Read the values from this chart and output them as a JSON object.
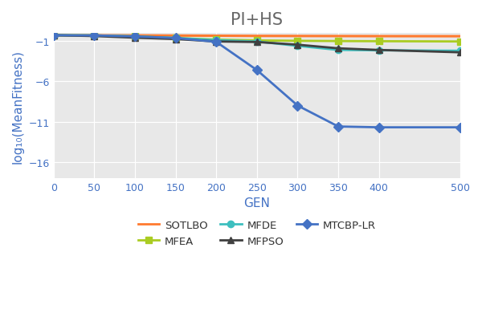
{
  "title": "PI+HS",
  "xlabel": "GEN",
  "ylabel": "log₁₀(MeanFitness)",
  "xlim": [
    0,
    500
  ],
  "ylim": [
    -18,
    0
  ],
  "yticks": [
    -16,
    -11,
    -6,
    -1
  ],
  "xticks": [
    0,
    50,
    100,
    150,
    200,
    250,
    300,
    350,
    400,
    500
  ],
  "bg_color": "#e8e8e8",
  "grid_color": "white",
  "series": [
    {
      "name": "SOTLBO",
      "color": "#FF7A2F",
      "marker": null,
      "markersize": 0,
      "linewidth": 2.2,
      "x": [
        0,
        50,
        100,
        150,
        200,
        250,
        300,
        350,
        400,
        500
      ],
      "y": [
        -0.28,
        -0.29,
        -0.3,
        -0.32,
        -0.34,
        -0.36,
        -0.37,
        -0.38,
        -0.39,
        -0.4
      ]
    },
    {
      "name": "MFEA",
      "color": "#AACC22",
      "marker": "s",
      "markersize": 6,
      "linewidth": 2.0,
      "x": [
        0,
        50,
        100,
        150,
        200,
        250,
        300,
        350,
        400,
        500
      ],
      "y": [
        -0.28,
        -0.3,
        -0.42,
        -0.62,
        -0.82,
        -0.92,
        -0.97,
        -1.0,
        -1.02,
        -1.05
      ]
    },
    {
      "name": "MFDE",
      "color": "#3DBFBF",
      "marker": "o",
      "markersize": 6,
      "linewidth": 2.0,
      "x": [
        0,
        50,
        100,
        150,
        200,
        250,
        300,
        350,
        400,
        500
      ],
      "y": [
        -0.28,
        -0.3,
        -0.42,
        -0.62,
        -0.88,
        -1.05,
        -1.6,
        -2.1,
        -2.15,
        -2.2
      ]
    },
    {
      "name": "MFPSO",
      "color": "#404040",
      "marker": "^",
      "markersize": 6,
      "linewidth": 2.0,
      "x": [
        0,
        50,
        100,
        150,
        200,
        250,
        300,
        350,
        400,
        500
      ],
      "y": [
        -0.28,
        -0.38,
        -0.58,
        -0.75,
        -1.05,
        -1.12,
        -1.45,
        -1.9,
        -2.1,
        -2.4
      ]
    },
    {
      "name": "MTCBP-LR",
      "color": "#4472C4",
      "marker": "D",
      "markersize": 6,
      "linewidth": 2.0,
      "x": [
        0,
        50,
        100,
        150,
        200,
        250,
        300,
        350,
        400,
        500
      ],
      "y": [
        -0.28,
        -0.3,
        -0.42,
        -0.62,
        -1.1,
        -4.6,
        -9.0,
        -11.6,
        -11.7,
        -11.7
      ]
    }
  ],
  "legend": [
    {
      "name": "SOTLBO",
      "color": "#FF7A2F",
      "marker": null
    },
    {
      "name": "MFEA",
      "color": "#AACC22",
      "marker": "s"
    },
    {
      "name": "MFDE",
      "color": "#3DBFBF",
      "marker": "o"
    },
    {
      "name": "MFPSO",
      "color": "#404040",
      "marker": "^"
    },
    {
      "name": "MTCBP-LR",
      "color": "#4472C4",
      "marker": "D"
    }
  ],
  "tick_color": "#4472C4",
  "label_color": "#4472C4",
  "title_color": "#666666",
  "title_fontsize": 15,
  "axis_label_fontsize": 11,
  "tick_fontsize": 9
}
